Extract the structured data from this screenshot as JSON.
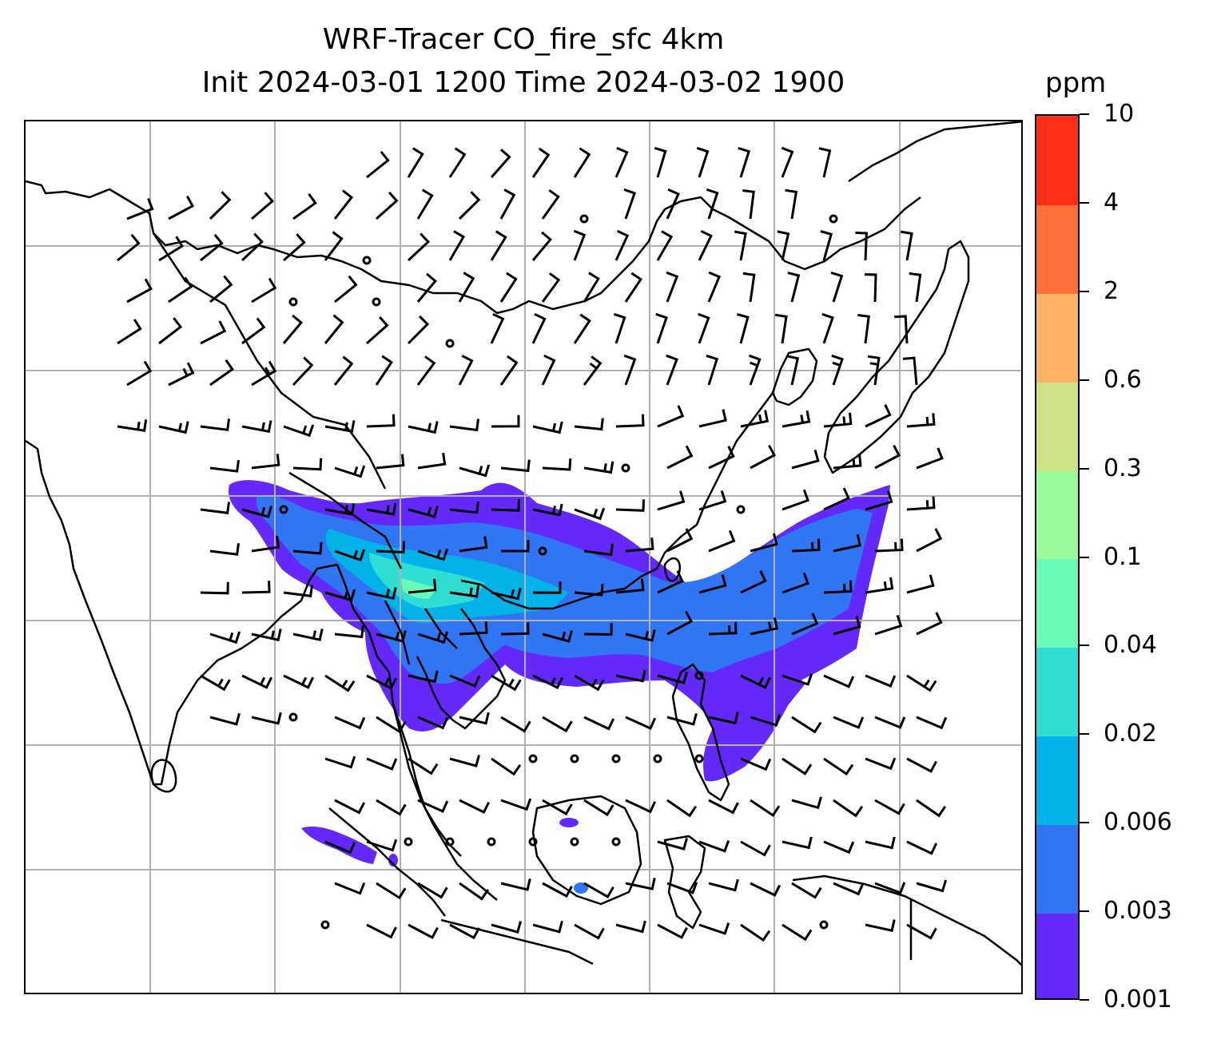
{
  "title": {
    "line1": "WRF-Tracer CO_fire_sfc 4km",
    "line2": "Init 2024-03-01 1200 Time 2024-03-02 1900"
  },
  "colorbar": {
    "unit": "ppm",
    "levels": [
      "0.001",
      "0.003",
      "0.006",
      "0.02",
      "0.04",
      "0.1",
      "0.3",
      "0.6",
      "2",
      "4",
      "10"
    ],
    "colors": [
      "#6229f8",
      "#3075f3",
      "#02b3ea",
      "#2fddd2",
      "#68fcb8",
      "#9af999",
      "#cee385",
      "#fdb265",
      "#ff7139",
      "#ff2e18"
    ]
  },
  "map": {
    "gridlines": true,
    "projection_grid": {
      "columns": 8,
      "rows": 7
    },
    "coastline_color": "#000000",
    "gridline_color": "#b0b0b0",
    "wind_barb_color": "#000000"
  },
  "chart_data": {
    "type": "heatmap",
    "title": "WRF-Tracer CO_fire_sfc 4km",
    "subtitle": "Init 2024-03-01 1200 Time 2024-03-02 1900",
    "variable": "CO_fire_sfc",
    "unit": "ppm",
    "color_levels": [
      0.001,
      0.003,
      0.006,
      0.02,
      0.04,
      0.1,
      0.3,
      0.6,
      2,
      4,
      10
    ],
    "overlays": [
      "coastlines",
      "wind barbs",
      "lat/lon gridlines"
    ],
    "max_class_observed": "0.04-0.1"
  }
}
